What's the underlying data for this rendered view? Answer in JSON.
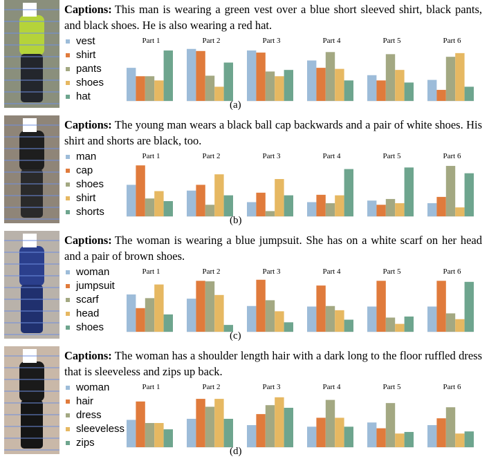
{
  "panels": [
    {
      "caption_label": "Captions:",
      "caption": "This man is wearing a green vest over a blue short sleeved shirt, black pants, and black shoes. He is also wearing a red hat.",
      "legend": [
        "vest",
        "shirt",
        "pants",
        "shoes",
        "hat"
      ],
      "tag": "(a)",
      "charts": [
        {
          "title": "Part 1",
          "values": [
            63,
            47,
            47,
            39,
            96
          ]
        },
        {
          "title": "Part 2",
          "values": [
            99,
            95,
            48,
            27,
            73
          ]
        },
        {
          "title": "Part 3",
          "values": [
            96,
            92,
            56,
            47,
            59
          ]
        },
        {
          "title": "Part 4",
          "values": [
            77,
            63,
            93,
            61,
            39
          ]
        },
        {
          "title": "Part 5",
          "values": [
            49,
            39,
            89,
            59,
            35
          ]
        },
        {
          "title": "Part 6",
          "values": [
            40,
            21,
            84,
            91,
            27
          ]
        }
      ]
    },
    {
      "caption_label": "Captions:",
      "caption": "The young man wears a black ball cap backwards and a pair of white shoes. His shirt and shorts are black, too.",
      "legend": [
        "man",
        "cap",
        "shoes",
        "shirt",
        "shorts"
      ],
      "tag": "(b)",
      "charts": [
        {
          "title": "Part 1",
          "values": [
            60,
            97,
            34,
            48,
            29
          ]
        },
        {
          "title": "Part 2",
          "values": [
            49,
            60,
            22,
            80,
            40
          ]
        },
        {
          "title": "Part 3",
          "values": [
            27,
            45,
            10,
            71,
            40
          ]
        },
        {
          "title": "Part 4",
          "values": [
            27,
            41,
            25,
            40,
            90
          ]
        },
        {
          "title": "Part 5",
          "values": [
            30,
            22,
            33,
            25,
            93
          ]
        },
        {
          "title": "Part 6",
          "values": [
            25,
            37,
            96,
            17,
            82
          ]
        }
      ]
    },
    {
      "caption_label": "Captions:",
      "caption": "The woman is wearing a blue jumpsuit. She has on a white scarf on her head and a pair of brown shoes.",
      "legend": [
        "woman",
        "jumpsuit",
        "scarf",
        "head",
        "shoes"
      ],
      "tag": "(c)",
      "charts": [
        {
          "title": "Part 1",
          "values": [
            71,
            45,
            64,
            90,
            33
          ]
        },
        {
          "title": "Part 2",
          "values": [
            63,
            97,
            96,
            70,
            13
          ]
        },
        {
          "title": "Part 3",
          "values": [
            49,
            99,
            60,
            39,
            18
          ]
        },
        {
          "title": "Part 4",
          "values": [
            48,
            88,
            49,
            41,
            23
          ]
        },
        {
          "title": "Part 5",
          "values": [
            48,
            97,
            27,
            15,
            29
          ]
        },
        {
          "title": "Part 6",
          "values": [
            48,
            97,
            35,
            24,
            95
          ]
        }
      ]
    },
    {
      "caption_label": "Captions:",
      "caption": "The woman has a shoulder length hair with a dark long to the floor ruffled dress that is sleeveless and zips up back.",
      "legend": [
        "woman",
        "hair",
        "dress",
        "sleeveless",
        "zips"
      ],
      "tag": "(d)",
      "charts": [
        {
          "title": "Part 1",
          "values": [
            52,
            87,
            46,
            46,
            34
          ]
        },
        {
          "title": "Part 2",
          "values": [
            54,
            92,
            77,
            92,
            54
          ]
        },
        {
          "title": "Part 3",
          "values": [
            42,
            63,
            80,
            95,
            75
          ]
        },
        {
          "title": "Part 4",
          "values": [
            39,
            56,
            90,
            56,
            39
          ]
        },
        {
          "title": "Part 5",
          "values": [
            47,
            36,
            84,
            26,
            29
          ]
        },
        {
          "title": "Part 6",
          "values": [
            42,
            55,
            76,
            26,
            30
          ]
        }
      ]
    }
  ],
  "colors": [
    "#9dbcd9",
    "#e07b3c",
    "#a3a882",
    "#e6b862",
    "#6ea58e"
  ],
  "ylim": [
    0,
    100
  ]
}
